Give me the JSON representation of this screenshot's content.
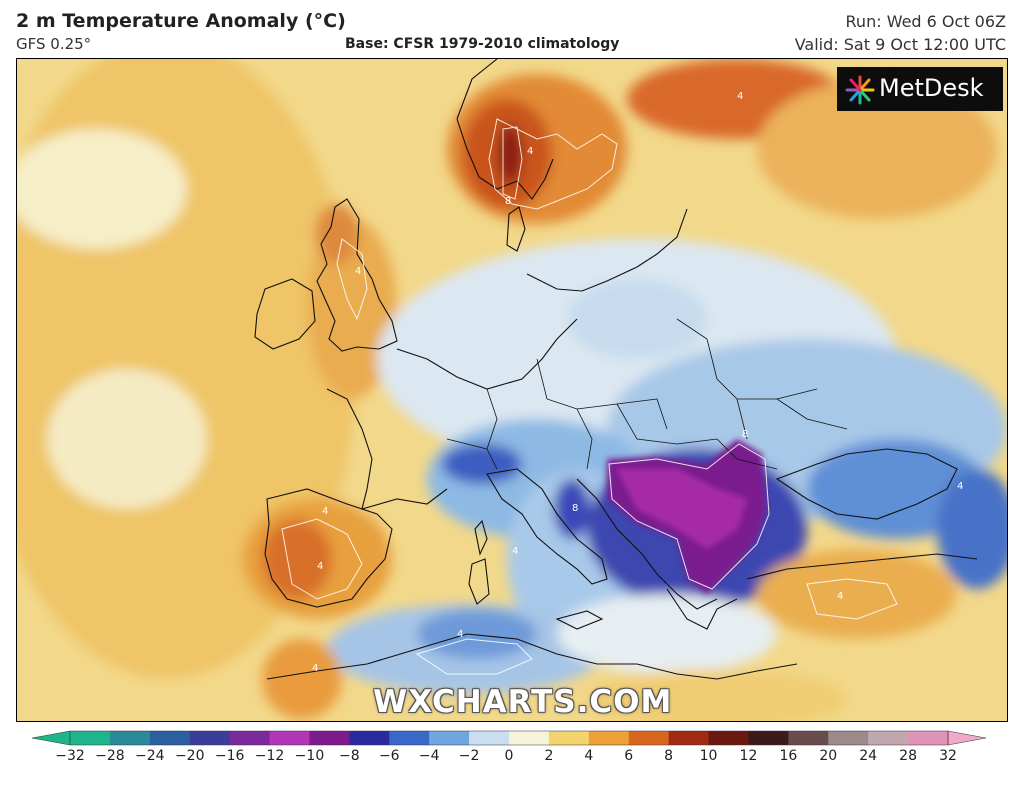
{
  "header": {
    "title": "2 m Temperature Anomaly (°C)",
    "model": "GFS 0.25°",
    "base": "Base: CFSR 1979-2010 climatology",
    "run": "Run: Wed 6 Oct 06Z",
    "valid": "Valid: Sat 9 Oct 12:00 UTC"
  },
  "logo": {
    "text": "MetDesk"
  },
  "watermark": "WXCHARTS.COM",
  "colorbar": {
    "ticks": [
      "−32",
      "−28",
      "−24",
      "−20",
      "−16",
      "−12",
      "−10",
      "−8",
      "−6",
      "−4",
      "−2",
      "0",
      "2",
      "4",
      "6",
      "8",
      "10",
      "12",
      "16",
      "20",
      "24",
      "28",
      "32"
    ],
    "colors": [
      "#1fb58c",
      "#2a8a9a",
      "#2b5fa0",
      "#3a3e9a",
      "#7a2a9a",
      "#b236b6",
      "#7d1a8c",
      "#2a2aa0",
      "#3a68c8",
      "#6fa6e0",
      "#c9def0",
      "#f6f4d8",
      "#f3d36e",
      "#eda037",
      "#d8661e",
      "#a12a12",
      "#6a1810",
      "#3a1a1a",
      "#6a4c4c",
      "#9a8a8a",
      "#c1a8b0",
      "#df93b8",
      "#f0a9c8"
    ]
  },
  "contour_labels": [
    "4",
    "4",
    "4",
    "4",
    "4",
    "8",
    "4",
    "4",
    "8",
    "4",
    "4",
    "8",
    "4",
    "4",
    "4",
    "4",
    "4",
    "4",
    "4",
    "4",
    "4"
  ]
}
